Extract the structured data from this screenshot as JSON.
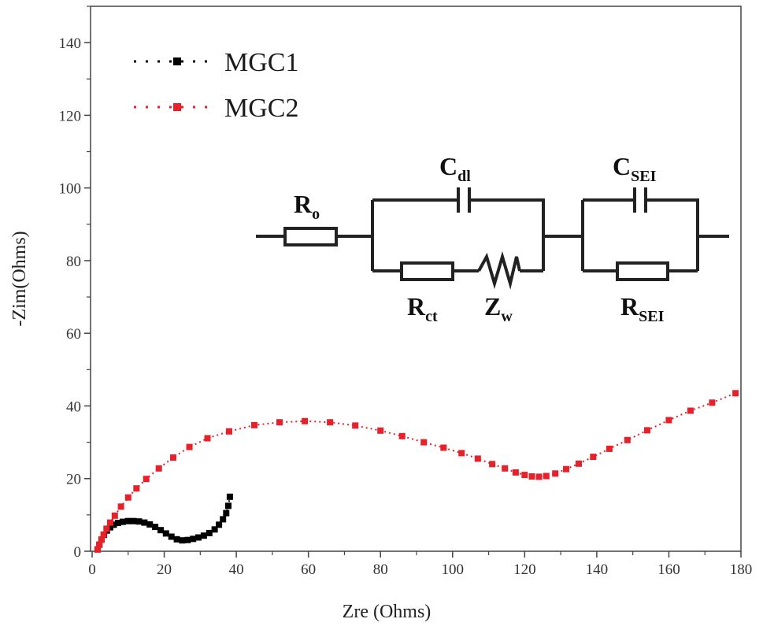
{
  "chart_data": {
    "type": "scatter",
    "xlabel": "Zre (Ohms)",
    "ylabel": "-Zim(Ohms)",
    "xlim": [
      0,
      180
    ],
    "ylim": [
      0,
      150
    ],
    "x_ticks": [
      "0",
      "20",
      "40",
      "60",
      "80",
      "100",
      "120",
      "140",
      "160",
      "180"
    ],
    "y_ticks": [
      "0",
      "20",
      "40",
      "60",
      "80",
      "100",
      "120",
      "140"
    ],
    "grid": false,
    "legend_position": "top-left",
    "series": [
      {
        "name": "MGC1",
        "color": "#000000",
        "marker": "square",
        "x": [
          1.5,
          2.0,
          2.6,
          3.3,
          4.1,
          5.0,
          6.0,
          7.2,
          8.5,
          10.0,
          11.5,
          13.0,
          14.5,
          16.0,
          17.5,
          19.0,
          20.5,
          22.0,
          23.5,
          25.0,
          26.5,
          28.0,
          29.5,
          31.0,
          32.5,
          34.0,
          35.2,
          36.3,
          37.2,
          37.8,
          38.2
        ],
        "y": [
          0.5,
          1.8,
          3.2,
          4.5,
          5.7,
          6.6,
          7.3,
          7.8,
          8.1,
          8.3,
          8.3,
          8.2,
          7.9,
          7.4,
          6.7,
          5.8,
          4.9,
          4.0,
          3.3,
          3.0,
          3.1,
          3.4,
          3.8,
          4.3,
          5.0,
          6.0,
          7.3,
          8.8,
          10.5,
          12.5,
          15.0
        ]
      },
      {
        "name": "MGC2",
        "color": "#e8202a",
        "marker": "square",
        "x": [
          1.5,
          2.0,
          2.6,
          3.2,
          4.0,
          5.0,
          6.3,
          8.0,
          10.0,
          12.3,
          15.0,
          18.5,
          22.5,
          27.0,
          32.0,
          38.0,
          45.0,
          52.0,
          59.0,
          66.0,
          73.0,
          80.0,
          86.0,
          92.0,
          97.5,
          102.5,
          107.0,
          111.0,
          114.5,
          117.5,
          120.0,
          122.0,
          124.0,
          126.0,
          128.5,
          131.5,
          135.0,
          139.0,
          143.5,
          148.5,
          154.0,
          160.0,
          166.0,
          172.0,
          178.5
        ],
        "y": [
          0.5,
          1.8,
          3.2,
          4.6,
          6.2,
          7.9,
          9.8,
          12.3,
          14.8,
          17.3,
          19.9,
          22.8,
          25.8,
          28.7,
          31.1,
          33.0,
          34.7,
          35.5,
          35.8,
          35.5,
          34.6,
          33.2,
          31.7,
          30.0,
          28.5,
          27.0,
          25.5,
          24.0,
          22.8,
          21.7,
          21.0,
          20.6,
          20.5,
          20.7,
          21.4,
          22.6,
          24.1,
          26.0,
          28.2,
          30.6,
          33.3,
          36.1,
          38.7,
          40.9,
          43.5
        ]
      }
    ]
  },
  "circuit": {
    "r0_label": "R",
    "r0_sub": "o",
    "cdl_label": "C",
    "cdl_sub": "dl",
    "rct_label": "R",
    "rct_sub": "ct",
    "zw_label": "Z",
    "zw_sub": "w",
    "csei_label": "C",
    "csei_sub": "SEI",
    "rsei_label": "R",
    "rsei_sub": "SEI"
  }
}
